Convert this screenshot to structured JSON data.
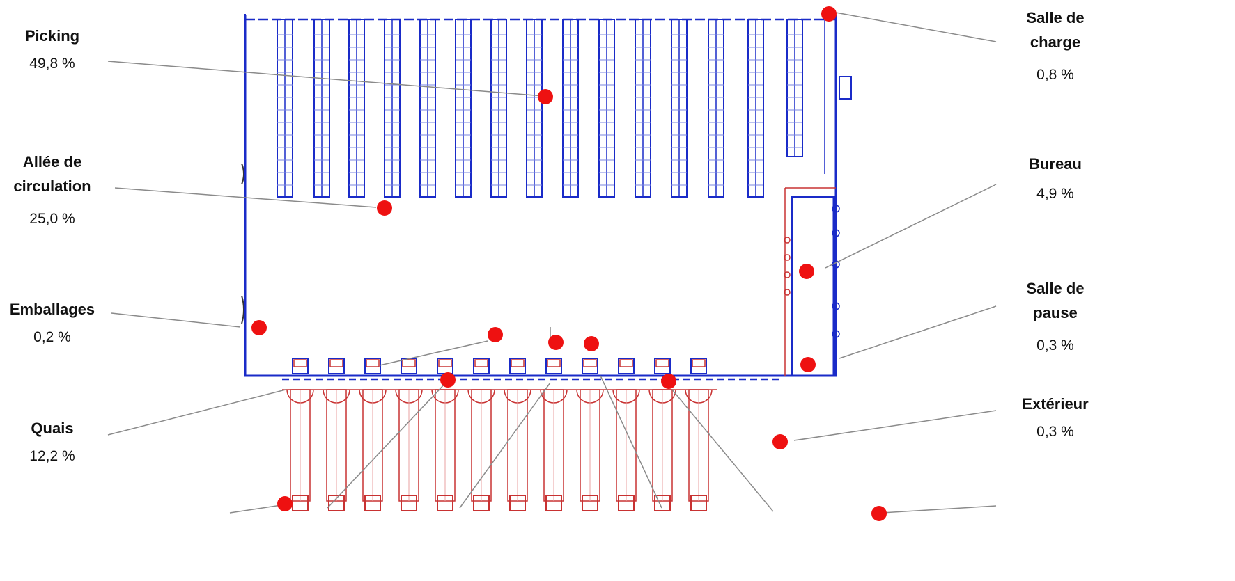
{
  "zones": {
    "picking": {
      "name": "Picking",
      "pct": "49,8 %"
    },
    "allee": {
      "name": "Allée de circulation",
      "pct": "25,0 %"
    },
    "emballages": {
      "name": "Emballages",
      "pct": "0,2 %"
    },
    "quais": {
      "name": "Quais",
      "pct": "12,2 %"
    },
    "salle_charge": {
      "name": "Salle de charge",
      "pct": "0,8 %"
    },
    "bureau": {
      "name": "Bureau",
      "pct": "4,9 %"
    },
    "salle_pause": {
      "name": "Salle de pause",
      "pct": "0,3 %"
    },
    "exterieur": {
      "name": "Extérieur",
      "pct": "0,3 %"
    }
  },
  "colors": {
    "plan_blue": "#1a2bc8",
    "dock_red": "#c83232",
    "marker_red": "#ee1111",
    "leader_gray": "#8a8a8a"
  }
}
